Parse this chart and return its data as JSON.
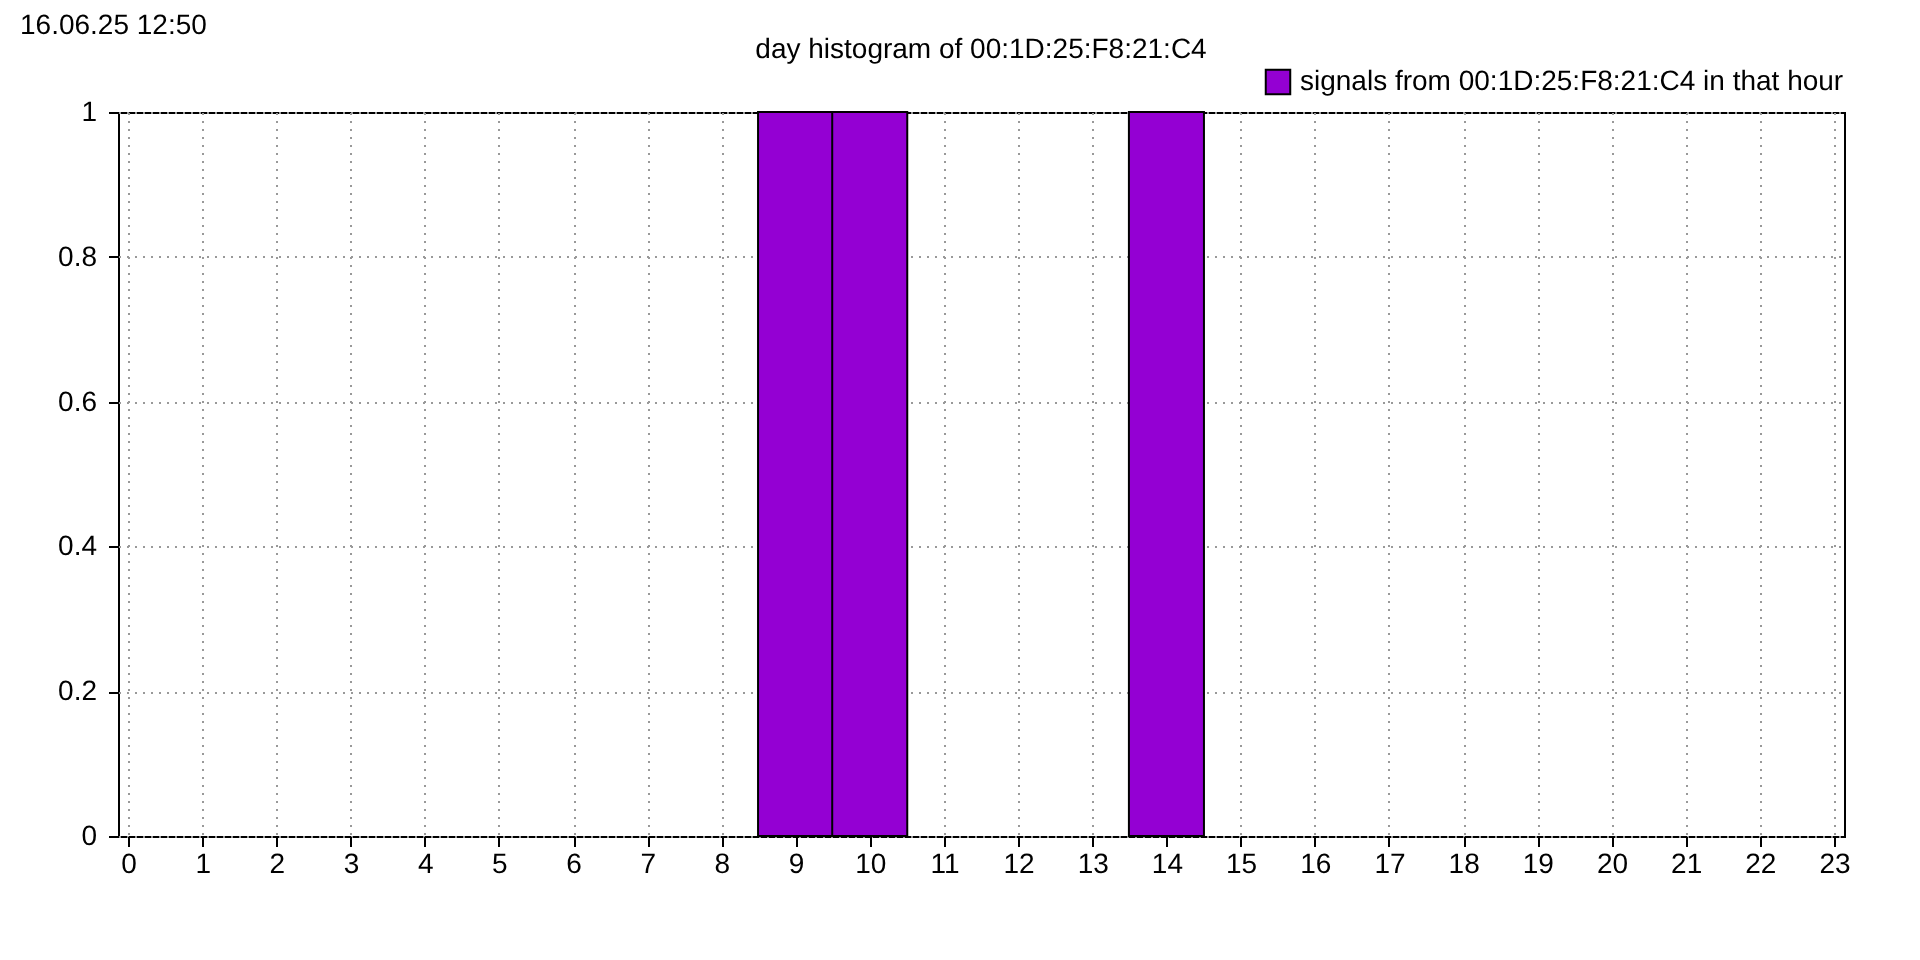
{
  "chart_data": {
    "type": "bar",
    "title": "day histogram of 00:1D:25:F8:21:C4",
    "annotations": [
      "16.06.25 12:50"
    ],
    "x": [
      9,
      10,
      14
    ],
    "series": [
      {
        "name": "signals from 00:1D:25:F8:21:C4 in that hour",
        "color": "#9400d3",
        "values": [
          1,
          1,
          1
        ]
      }
    ],
    "xlim": [
      0,
      23
    ],
    "xticks": [
      0,
      1,
      2,
      3,
      4,
      5,
      6,
      7,
      8,
      9,
      10,
      11,
      12,
      13,
      14,
      15,
      16,
      17,
      18,
      19,
      20,
      21,
      22,
      23
    ],
    "ylim": [
      0,
      1
    ],
    "yticks": [
      0,
      0.2,
      0.4,
      0.6,
      0.8,
      1
    ],
    "grid": true,
    "legend": "top right"
  }
}
